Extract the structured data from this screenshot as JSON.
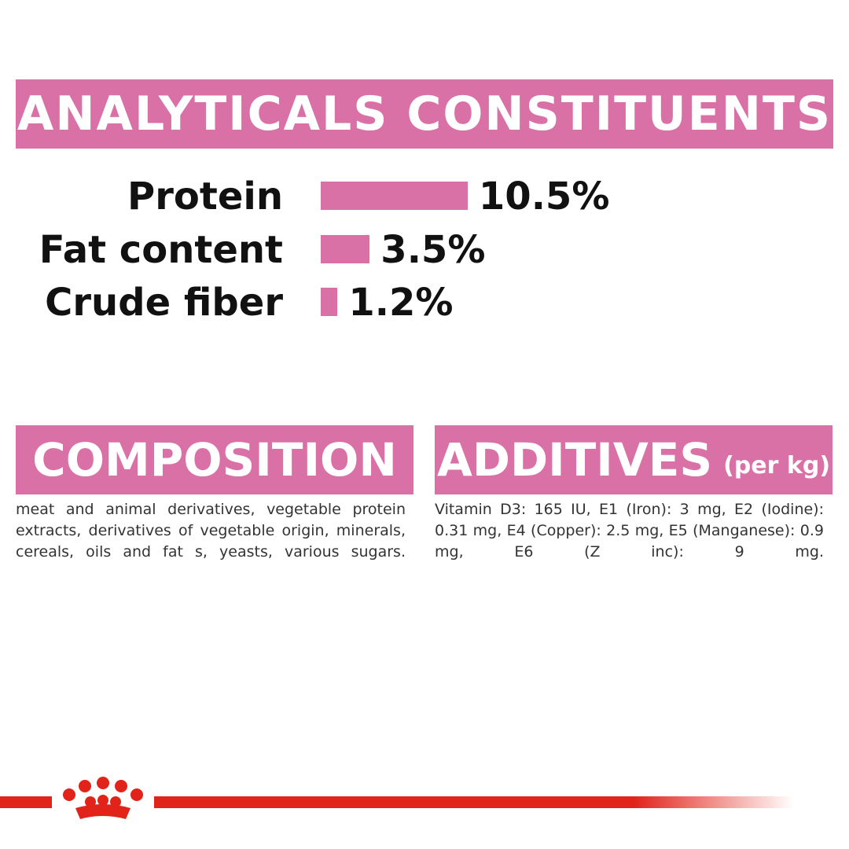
{
  "chart_data": {
    "type": "bar",
    "title": "ANALYTICALS CONSTITUENTS",
    "categories": [
      "Protein",
      "Fat content",
      "Crude fiber"
    ],
    "values": [
      10.5,
      3.5,
      1.2
    ],
    "value_labels": [
      "10.5%",
      "3.5%",
      "1.2%"
    ],
    "color": "#d971a6"
  },
  "composition": {
    "title": "COMPOSITION",
    "text": "meat and animal derivatives, vegetable protein extracts, derivatives of vegetable origin, minerals, cereals, oils and fat s, yeasts, various sugars."
  },
  "additives": {
    "title": "ADDITIVES",
    "unit": "(per kg)",
    "text": "Vitamin D3: 165 IU, E1 (Iron): 3 mg, E2 (Iodine): 0.31 mg, E4 (Copper): 2.5 mg, E5 (Manganese): 0.9 mg, E6 (Z inc): 9 mg."
  }
}
